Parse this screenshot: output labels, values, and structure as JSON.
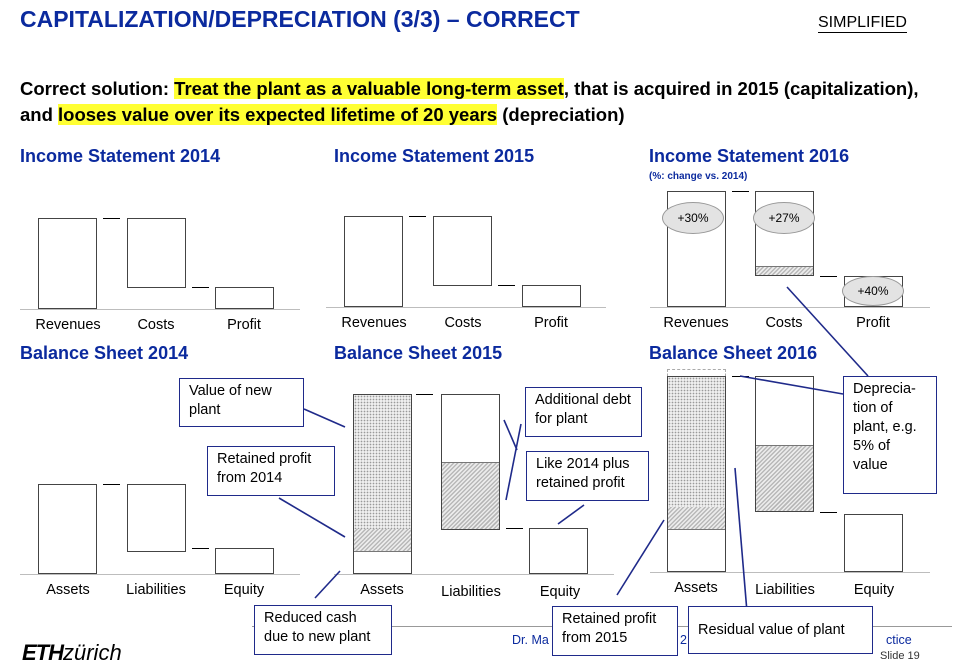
{
  "title": "CAPITALIZATION/DEPRECIATION (3/3) – CORRECT",
  "tag": "SIMPLIFIED",
  "intro": {
    "prefix": "Correct solution: ",
    "hl1": "Treat the plant as a valuable long-term asset",
    "mid": ", that is acquired in 2015 (capitalization), and ",
    "hl2": "looses value over its expected lifetime of 20 years",
    "suffix": " (depreciation)"
  },
  "income": {
    "y2014": {
      "title": "Income Statement 2014"
    },
    "y2015": {
      "title": "Income Statement 2015"
    },
    "y2016": {
      "title": "Income Statement 2016",
      "subtitle": "(%: change vs. 2014)",
      "revenues_change": "+30%",
      "costs_change": "+27%",
      "profit_change": "+40%"
    },
    "labels": {
      "revenues": "Revenues",
      "costs": "Costs",
      "profit": "Profit"
    }
  },
  "balance": {
    "y2014": {
      "title": "Balance Sheet 2014"
    },
    "y2015": {
      "title": "Balance Sheet 2015"
    },
    "y2016": {
      "title": "Balance Sheet 2016"
    },
    "labels": {
      "assets": "Assets",
      "liabilities": "Liabilities",
      "equity": "Equity"
    }
  },
  "notes": {
    "value_new_plant": "Value of new plant",
    "retained_2014": "Retained profit from 2014",
    "additional_debt": "Additional debt for plant",
    "like_2014": "Like 2014 plus retained profit",
    "reduced_cash": "Reduced cash due to new plant",
    "retained_2015": "Retained profit from 2015",
    "residual_value": "Residual value of plant",
    "depreciation": "Deprecia-tion of plant, e.g. 5% of value"
  },
  "footer": {
    "author_partial": "Dr. Ma",
    "year_partial": "2",
    "course_partial": "ctice",
    "slide": "Slide 19",
    "logo_bold": "ETH",
    "logo_italic": "zürich"
  },
  "colors": {
    "title": "#0b2a9e",
    "highlight": "#ffff33",
    "note_border": "#1f2a8a"
  }
}
